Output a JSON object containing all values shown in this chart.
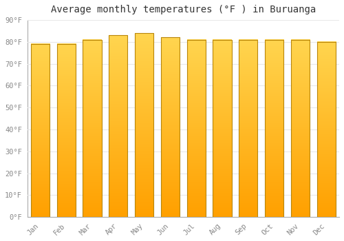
{
  "title": "Average monthly temperatures (°F ) in Buruanga",
  "months": [
    "Jan",
    "Feb",
    "Mar",
    "Apr",
    "May",
    "Jun",
    "Jul",
    "Aug",
    "Sep",
    "Oct",
    "Nov",
    "Dec"
  ],
  "values": [
    79,
    79,
    81,
    83,
    84,
    82,
    81,
    81,
    81,
    81,
    81,
    80
  ],
  "bar_color_top": "#FFD54F",
  "bar_color_bottom": "#FFA000",
  "background_color": "#ffffff",
  "plot_bg_color": "#ffffff",
  "ylim": [
    0,
    90
  ],
  "yticks": [
    0,
    10,
    20,
    30,
    40,
    50,
    60,
    70,
    80,
    90
  ],
  "ytick_labels": [
    "0°F",
    "10°F",
    "20°F",
    "30°F",
    "40°F",
    "50°F",
    "60°F",
    "70°F",
    "80°F",
    "90°F"
  ],
  "title_fontsize": 10,
  "tick_fontsize": 7.5,
  "bar_edge_color": "#b8860b",
  "grid_color": "#e8e8e8",
  "font_family": "monospace"
}
